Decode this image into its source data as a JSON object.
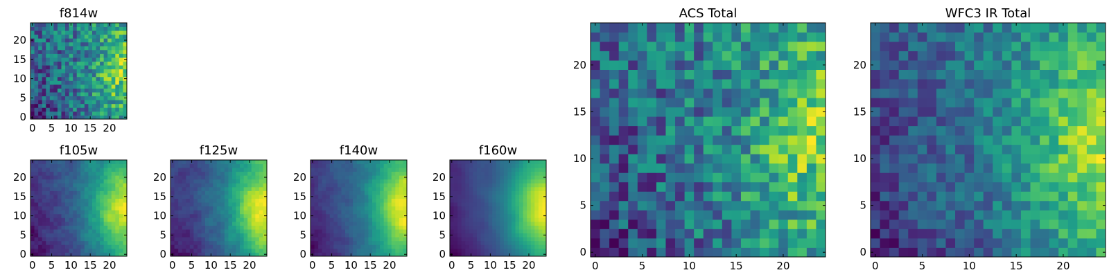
{
  "chart_data": [
    {
      "type": "heatmap",
      "title": "f814w",
      "grid_size": 25,
      "x_ticks": [
        0,
        5,
        10,
        15,
        20
      ],
      "y_ticks": [
        0,
        5,
        10,
        15,
        20
      ],
      "xlim": [
        -0.5,
        24.5
      ],
      "ylim": [
        -0.5,
        24.5
      ],
      "colormap": "viridis",
      "brightest_region": "right-center",
      "seed": 11,
      "gradient": 0.55,
      "noise": 0.55,
      "smoothness": 0.15
    },
    {
      "type": "heatmap",
      "title": "f105w",
      "grid_size": 25,
      "x_ticks": [
        0,
        5,
        10,
        15,
        20
      ],
      "y_ticks": [
        0,
        5,
        10,
        15,
        20
      ],
      "xlim": [
        -0.5,
        24.5
      ],
      "ylim": [
        -0.5,
        24.5
      ],
      "colormap": "viridis",
      "brightest_region": "right-center",
      "seed": 23,
      "gradient": 1.0,
      "noise": 0.4,
      "smoothness": 0.5
    },
    {
      "type": "heatmap",
      "title": "f125w",
      "grid_size": 25,
      "x_ticks": [
        0,
        5,
        10,
        15,
        20
      ],
      "y_ticks": [
        0,
        5,
        10,
        15,
        20
      ],
      "xlim": [
        -0.5,
        24.5
      ],
      "ylim": [
        -0.5,
        24.5
      ],
      "colormap": "viridis",
      "brightest_region": "right-center",
      "seed": 37,
      "gradient": 0.95,
      "noise": 0.38,
      "smoothness": 0.55
    },
    {
      "type": "heatmap",
      "title": "f140w",
      "grid_size": 25,
      "x_ticks": [
        0,
        5,
        10,
        15,
        20
      ],
      "y_ticks": [
        0,
        5,
        10,
        15,
        20
      ],
      "xlim": [
        -0.5,
        24.5
      ],
      "ylim": [
        -0.5,
        24.5
      ],
      "colormap": "viridis",
      "brightest_region": "right-center",
      "seed": 41,
      "gradient": 1.0,
      "noise": 0.35,
      "smoothness": 0.6
    },
    {
      "type": "heatmap",
      "title": "f160w",
      "grid_size": 25,
      "x_ticks": [
        0,
        5,
        10,
        15,
        20
      ],
      "y_ticks": [
        0,
        5,
        10,
        15,
        20
      ],
      "xlim": [
        -0.5,
        24.5
      ],
      "ylim": [
        -0.5,
        24.5
      ],
      "colormap": "viridis",
      "brightest_region": "right-center",
      "seed": 53,
      "gradient": 1.1,
      "noise": 0.22,
      "smoothness": 0.75
    },
    {
      "type": "heatmap",
      "title": "ACS Total",
      "grid_size": 25,
      "x_ticks": [
        0,
        5,
        10,
        15,
        20
      ],
      "y_ticks": [
        0,
        5,
        10,
        15,
        20
      ],
      "xlim": [
        -0.5,
        24.5
      ],
      "ylim": [
        -0.5,
        24.5
      ],
      "colormap": "viridis",
      "brightest_region": "right-center",
      "seed": 11,
      "gradient": 0.55,
      "noise": 0.55,
      "smoothness": 0.15
    },
    {
      "type": "heatmap",
      "title": "WFC3 IR Total",
      "grid_size": 25,
      "x_ticks": [
        0,
        5,
        10,
        15,
        20
      ],
      "y_ticks": [
        0,
        5,
        10,
        15,
        20
      ],
      "xlim": [
        -0.5,
        24.5
      ],
      "ylim": [
        -0.5,
        24.5
      ],
      "colormap": "viridis",
      "brightest_region": "right-center",
      "seed": 67,
      "gradient": 0.7,
      "noise": 0.42,
      "smoothness": 0.2
    }
  ]
}
